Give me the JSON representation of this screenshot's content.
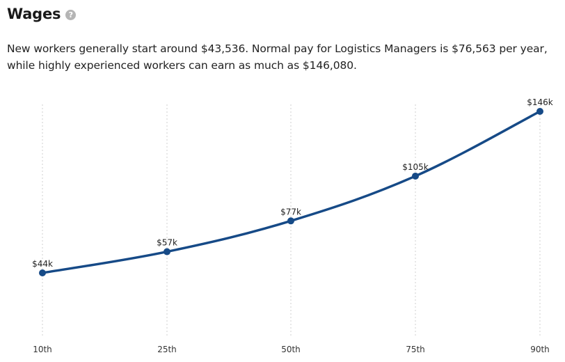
{
  "header": {
    "title": "Wages",
    "help_icon": "question-circle-icon",
    "description": "New workers generally start around $43,536. Normal pay for Logistics Managers is $76,563 per year, while highly experienced workers can earn as much as $146,080."
  },
  "chart_data": {
    "type": "line",
    "categories": [
      "10th",
      "25th",
      "50th",
      "75th",
      "90th"
    ],
    "values": [
      43.536,
      57,
      76.563,
      105,
      146.08
    ],
    "data_labels": [
      "$44k",
      "$57k",
      "$77k",
      "$105k",
      "$146k"
    ],
    "ylim": [
      0,
      160
    ],
    "grid": "vertical-dotted",
    "colors": {
      "line": "#164a87",
      "grid": "#cfcfcf"
    }
  }
}
